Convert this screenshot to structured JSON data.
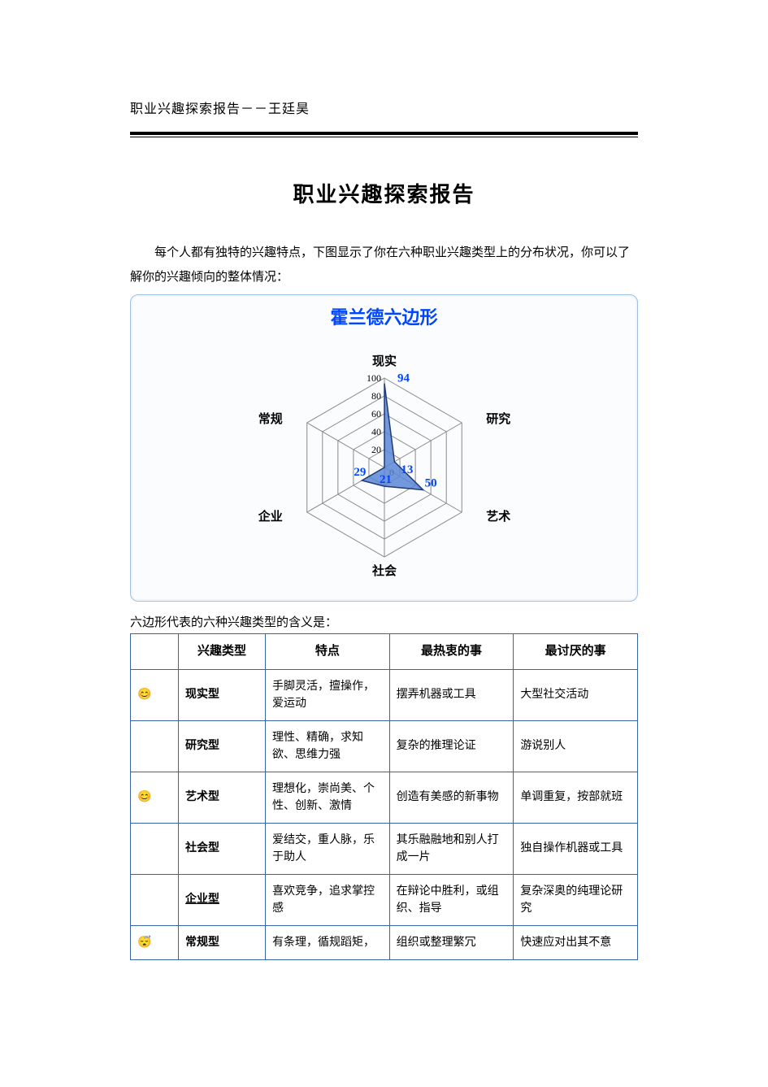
{
  "document_header": "职业兴趣探索报告－－王廷昊",
  "main_title": "职业兴趣探索报告",
  "intro_text": "每个人都有独特的兴趣特点，下图显示了你在六种职业兴趣类型上的分布状况，你可以了解你的兴趣倾向的整体情况：",
  "radar_chart": {
    "type": "radar",
    "title": "霍兰德六边形",
    "title_color": "#0046ff",
    "title_fontsize": 22,
    "axis_labels": [
      "现实",
      "研究",
      "艺术",
      "社会",
      "企业",
      "常规"
    ],
    "axis_label_color": "#000000",
    "values": [
      94,
      13,
      50,
      21,
      29,
      0
    ],
    "value_label_color": "#0046ff",
    "rings": [
      20,
      40,
      60,
      80,
      100
    ],
    "ring_labels": [
      "20",
      "40",
      "60",
      "80",
      "100"
    ],
    "ring_label_color": "#000000",
    "grid_color": "#8a8a8a",
    "fill_color": "#5a86d6",
    "fill_opacity": 0.85,
    "stroke_color": "#1f3a76",
    "background_color": "#fbfcfe",
    "panel_border_color": "#9ec0e2",
    "max_value": 100,
    "center_label": "0"
  },
  "table_caption": "六边形代表的六种兴趣类型的含义是：",
  "table": {
    "columns": [
      "",
      "兴趣类型",
      "特点",
      "最热衷的事",
      "最讨厌的事"
    ],
    "border_color": "#3a64a8",
    "header_fontsize": 15,
    "cell_fontsize": 14,
    "rows": [
      {
        "emoji": "😊",
        "type": "现实型",
        "feature": "手脚灵活，擅操作，爱运动",
        "love": "摆弄机器或工具",
        "hate": "大型社交活动",
        "underline": false
      },
      {
        "emoji": "",
        "type": "研究型",
        "feature": "理性、精确，求知欲、思维力强",
        "love": "复杂的推理论证",
        "hate": "游说别人",
        "underline": false
      },
      {
        "emoji": "😊",
        "type": "艺术型",
        "feature": "理想化，崇尚美、个性、创新、激情",
        "love": "创造有美感的新事物",
        "hate": "单调重复，按部就班",
        "underline": false
      },
      {
        "emoji": "",
        "type": "社会型",
        "feature": "爱结交，重人脉，乐于助人",
        "love": "其乐融融地和别人打成一片",
        "hate": "独自操作机器或工具",
        "underline": false
      },
      {
        "emoji": "",
        "type": "企业型",
        "feature": "喜欢竞争，追求掌控感",
        "love": "在辩论中胜利，或组织、指导",
        "hate": "复杂深奥的纯理论研究",
        "underline": true
      },
      {
        "emoji": "😴",
        "type": "常规型",
        "feature": "有条理，循规蹈矩，",
        "love": "组织或整理繁冗",
        "hate": "快速应对出其不意",
        "underline": false
      }
    ]
  }
}
